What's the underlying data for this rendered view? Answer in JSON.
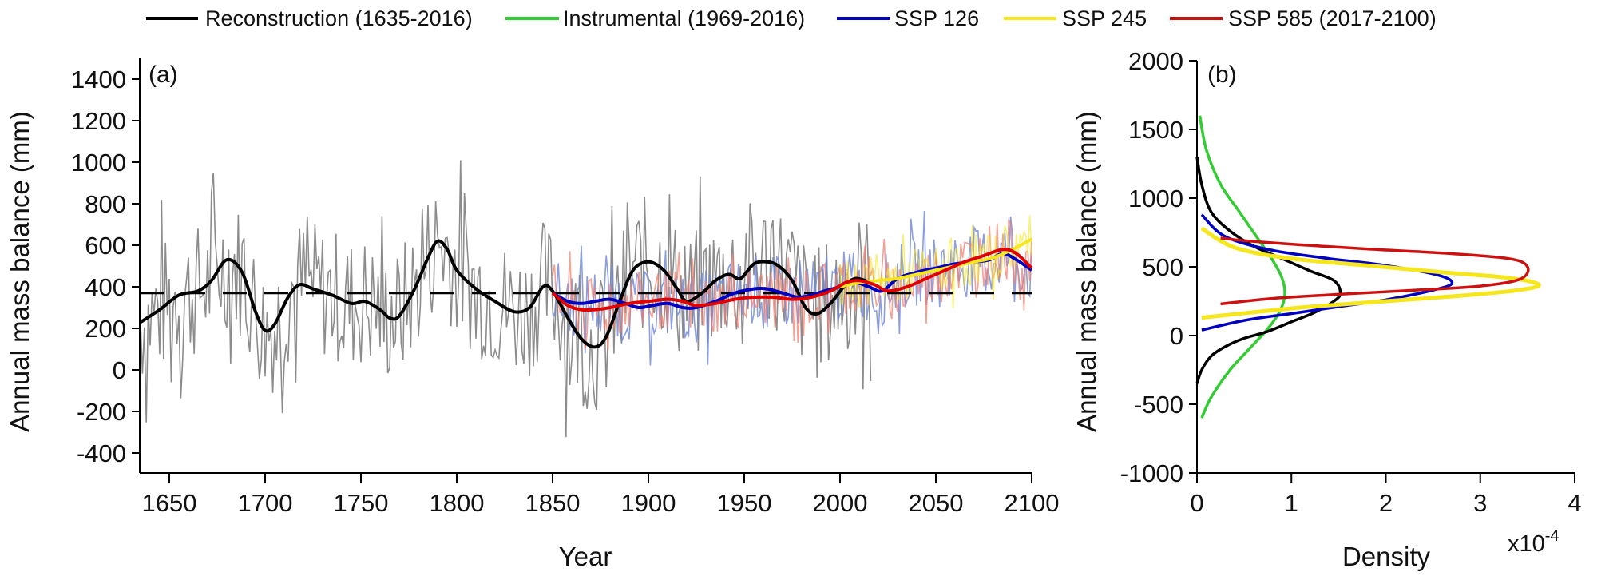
{
  "chart_data": [
    {
      "panel": "(a)",
      "type": "line",
      "xlabel": "Year",
      "ylabel": "Annual mass balance (mm)",
      "xlim": [
        1635,
        2100
      ],
      "ylim": [
        -500,
        1450
      ],
      "xticks": [
        1650,
        1700,
        1750,
        1800,
        1850,
        1900,
        1950,
        2000,
        2050,
        2100
      ],
      "yticks": [
        -400,
        -200,
        0,
        200,
        400,
        600,
        800,
        1000,
        1200,
        1400
      ],
      "reference_line": {
        "value": 370,
        "style": "dashed",
        "color": "#000000"
      },
      "series": [
        {
          "name": "Reconstruction (1635-2016) smoothed",
          "color": "#000000",
          "x": [
            1635,
            1645,
            1655,
            1665,
            1672,
            1680,
            1688,
            1695,
            1700,
            1705,
            1712,
            1718,
            1725,
            1735,
            1745,
            1752,
            1760,
            1765,
            1770,
            1778,
            1785,
            1790,
            1795,
            1800,
            1810,
            1820,
            1830,
            1838,
            1845,
            1850,
            1858,
            1865,
            1872,
            1878,
            1885,
            1892,
            1900,
            1908,
            1915,
            1920,
            1928,
            1935,
            1942,
            1948,
            1955,
            1962,
            1968,
            1975,
            1982,
            1988,
            1995,
            2002,
            2008,
            2016
          ],
          "y": [
            230,
            290,
            360,
            380,
            430,
            530,
            470,
            280,
            190,
            220,
            350,
            410,
            390,
            360,
            320,
            330,
            290,
            250,
            260,
            390,
            540,
            620,
            580,
            480,
            390,
            330,
            280,
            300,
            400,
            380,
            250,
            150,
            110,
            160,
            330,
            480,
            520,
            480,
            390,
            330,
            370,
            430,
            460,
            440,
            510,
            520,
            500,
            430,
            300,
            270,
            320,
            400,
            440,
            420
          ]
        },
        {
          "name": "SSP 126 smoothed",
          "color": "#0000c0",
          "x": [
            1850,
            1858,
            1865,
            1872,
            1880,
            1888,
            1895,
            1902,
            1910,
            1918,
            1925,
            1935,
            1945,
            1955,
            1962,
            1970,
            1978,
            1985,
            1992,
            2000,
            2008,
            2015,
            2022,
            2030,
            2040,
            2050,
            2060,
            2070,
            2078,
            2085,
            2092,
            2100
          ],
          "y": [
            370,
            330,
            320,
            330,
            340,
            320,
            300,
            310,
            320,
            300,
            300,
            330,
            370,
            390,
            390,
            370,
            350,
            360,
            380,
            400,
            420,
            400,
            380,
            440,
            470,
            490,
            510,
            520,
            530,
            560,
            530,
            480
          ]
        },
        {
          "name": "SSP 245 smoothed",
          "color": "#f5e61e",
          "x": [
            2000,
            2010,
            2020,
            2030,
            2040,
            2050,
            2060,
            2070,
            2080,
            2090,
            2100
          ],
          "y": [
            400,
            420,
            430,
            440,
            460,
            480,
            500,
            520,
            540,
            580,
            630
          ]
        },
        {
          "name": "SSP 585 (2017-2100) smoothed",
          "color": "#e00000",
          "x": [
            1850,
            1858,
            1865,
            1872,
            1880,
            1890,
            1900,
            1910,
            1918,
            1925,
            1935,
            1945,
            1955,
            1965,
            1975,
            1985,
            1995,
            2003,
            2010,
            2018,
            2025,
            2035,
            2045,
            2055,
            2065,
            2075,
            2085,
            2092,
            2100
          ],
          "y": [
            370,
            310,
            290,
            290,
            300,
            320,
            330,
            340,
            330,
            310,
            320,
            340,
            350,
            350,
            340,
            350,
            380,
            420,
            430,
            410,
            380,
            400,
            440,
            480,
            520,
            550,
            580,
            560,
            490
          ]
        }
      ]
    },
    {
      "panel": "(b)",
      "type": "line",
      "xlabel": "Density",
      "x_multiplier": "x10-4",
      "ylabel": "Annual mass balance (mm)",
      "xlim": [
        0,
        4
      ],
      "ylim": [
        -1000,
        2000
      ],
      "xticks": [
        0,
        1,
        2,
        3,
        4
      ],
      "yticks": [
        -1000,
        -500,
        0,
        500,
        1000,
        1500,
        2000
      ],
      "series": [
        {
          "name": "Reconstruction (1635-2016)",
          "color": "#000000",
          "density": [
            0.0,
            0.05,
            0.15,
            0.3,
            0.5,
            0.75,
            1.0,
            1.25,
            1.45,
            1.52,
            1.45,
            1.2,
            0.9,
            0.6,
            0.35,
            0.15,
            0.05,
            0.0
          ],
          "y": [
            -350,
            -250,
            -150,
            -80,
            -20,
            30,
            100,
            170,
            250,
            310,
            400,
            470,
            560,
            650,
            760,
            900,
            1100,
            1300
          ]
        },
        {
          "name": "Instrumental (1969-2016)",
          "color": "#33cc33",
          "density": [
            0.05,
            0.15,
            0.35,
            0.55,
            0.75,
            0.88,
            0.93,
            0.9,
            0.8,
            0.65,
            0.45,
            0.25,
            0.1,
            0.03
          ],
          "y": [
            -600,
            -450,
            -250,
            -100,
            50,
            180,
            300,
            420,
            550,
            700,
            900,
            1100,
            1350,
            1600
          ]
        },
        {
          "name": "SSP 126",
          "color": "#0000c0",
          "density": [
            0.05,
            0.5,
            1.0,
            1.5,
            2.0,
            2.5,
            2.7,
            2.55,
            2.0,
            1.4,
            0.8,
            0.3,
            0.05
          ],
          "y": [
            40,
            110,
            160,
            210,
            260,
            330,
            380,
            440,
            510,
            560,
            620,
            720,
            880
          ]
        },
        {
          "name": "SSP 245",
          "color": "#f5e61e",
          "density": [
            0.05,
            0.6,
            1.2,
            2.0,
            2.8,
            3.4,
            3.62,
            3.3,
            2.6,
            1.8,
            1.0,
            0.4,
            0.05
          ],
          "y": [
            130,
            170,
            210,
            250,
            290,
            330,
            370,
            420,
            460,
            510,
            560,
            640,
            780
          ]
        },
        {
          "name": "SSP 585 (2017-2100)",
          "color": "#cc1111",
          "density": [
            0.25,
            0.8,
            1.5,
            2.3,
            3.0,
            3.42,
            3.5,
            3.3,
            2.6,
            1.8,
            1.1,
            0.5,
            0.25
          ],
          "y": [
            230,
            270,
            300,
            330,
            360,
            410,
            500,
            560,
            600,
            630,
            660,
            690,
            710
          ]
        }
      ]
    }
  ],
  "legend": [
    {
      "label": "Reconstruction (1635-2016)",
      "color": "#000000"
    },
    {
      "label": "Instrumental (1969-2016)",
      "color": "#33cc33"
    },
    {
      "label": "SSP 126",
      "color": "#0000c0"
    },
    {
      "label": "SSP 245",
      "color": "#f5e61e"
    },
    {
      "label": "SSP 585 (2017-2100)",
      "color": "#cc1111"
    }
  ],
  "labels": {
    "panel_a": "(a)",
    "panel_b": "(b)",
    "ylabel_a": "Annual mass balance (mm)",
    "ylabel_b": "Annual mass balance (mm)",
    "xlabel_a": "Year",
    "xlabel_b": "Density",
    "multiplier_base": "x10",
    "multiplier_exp": "-4"
  }
}
